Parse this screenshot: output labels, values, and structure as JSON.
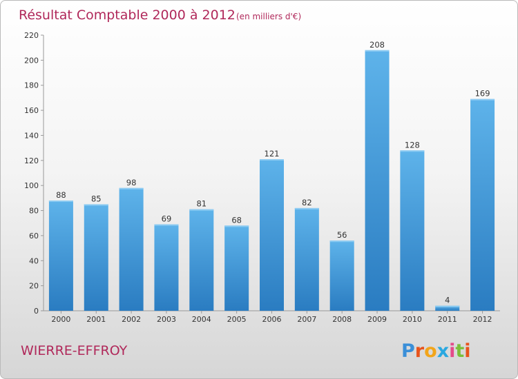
{
  "chart_data": {
    "type": "bar",
    "title": "Résultat Comptable 2000 à 2012",
    "subtitle": "(en milliers d'€)",
    "categories": [
      "2000",
      "2001",
      "2002",
      "2003",
      "2004",
      "2005",
      "2006",
      "2007",
      "2008",
      "2009",
      "2010",
      "2011",
      "2012"
    ],
    "values": [
      88,
      85,
      98,
      69,
      81,
      68,
      121,
      82,
      56,
      208,
      128,
      4,
      169
    ],
    "ylim": [
      0,
      220
    ],
    "yticks": [
      0,
      20,
      40,
      60,
      80,
      100,
      120,
      140,
      160,
      180,
      200,
      220
    ],
    "grid": false,
    "bar_color": "#4a9fdf"
  },
  "place_name": "WIERRE-EFFROY",
  "brand": {
    "letters": [
      "P",
      "r",
      "o",
      "x",
      "i",
      "t",
      "i"
    ],
    "colors": [
      "#3a8fd8",
      "#e8541c",
      "#f2a51a",
      "#2aa8e0",
      "#e44b8a",
      "#7bbf3a",
      "#e8541c"
    ]
  }
}
